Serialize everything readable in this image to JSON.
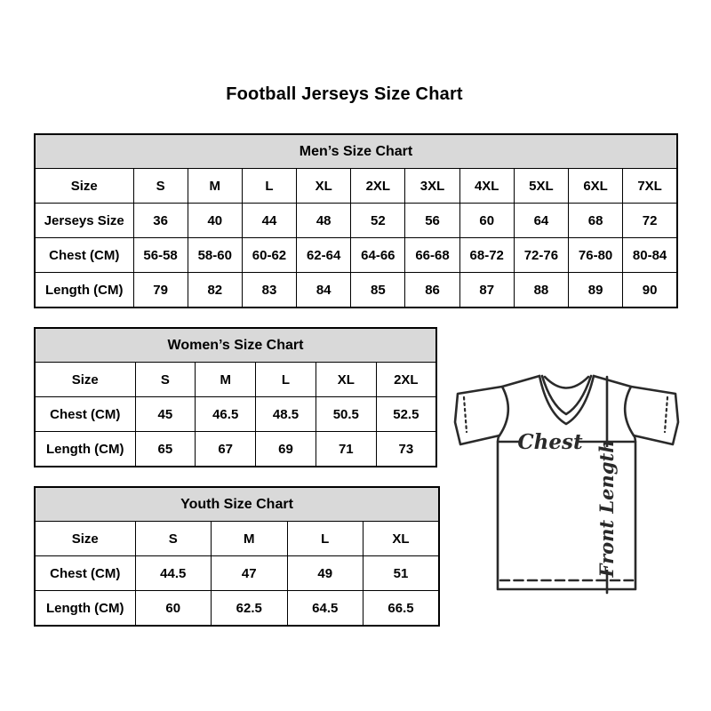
{
  "page": {
    "title": "Football Jerseys Size Chart"
  },
  "colors": {
    "background": "#ffffff",
    "table_header_bg": "#d9d9d9",
    "border": "#000000",
    "text": "#000000",
    "diagram_stroke": "#2a2a2a"
  },
  "tables": {
    "mens": {
      "title": "Men’s Size Chart",
      "rows": [
        {
          "label": "Size",
          "values": [
            "S",
            "M",
            "L",
            "XL",
            "2XL",
            "3XL",
            "4XL",
            "5XL",
            "6XL",
            "7XL"
          ]
        },
        {
          "label": "Jerseys Size",
          "values": [
            "36",
            "40",
            "44",
            "48",
            "52",
            "56",
            "60",
            "64",
            "68",
            "72"
          ]
        },
        {
          "label": "Chest (CM)",
          "values": [
            "56-58",
            "58-60",
            "60-62",
            "62-64",
            "64-66",
            "66-68",
            "68-72",
            "72-76",
            "76-80",
            "80-84"
          ]
        },
        {
          "label": "Length (CM)",
          "values": [
            "79",
            "82",
            "83",
            "84",
            "85",
            "86",
            "87",
            "88",
            "89",
            "90"
          ]
        }
      ]
    },
    "womens": {
      "title": "Women’s Size Chart",
      "rows": [
        {
          "label": "Size",
          "values": [
            "S",
            "M",
            "L",
            "XL",
            "2XL"
          ]
        },
        {
          "label": "Chest (CM)",
          "values": [
            "45",
            "46.5",
            "48.5",
            "50.5",
            "52.5"
          ]
        },
        {
          "label": "Length (CM)",
          "values": [
            "65",
            "67",
            "69",
            "71",
            "73"
          ]
        }
      ]
    },
    "youth": {
      "title": "Youth Size Chart",
      "rows": [
        {
          "label": "Size",
          "values": [
            "S",
            "M",
            "L",
            "XL"
          ]
        },
        {
          "label": "Chest (CM)",
          "values": [
            "44.5",
            "47",
            "49",
            "51"
          ]
        },
        {
          "label": "Length (CM)",
          "values": [
            "60",
            "62.5",
            "64.5",
            "66.5"
          ]
        }
      ]
    }
  },
  "diagram": {
    "chest_label": "Chest",
    "front_length_label": "Front Length"
  }
}
